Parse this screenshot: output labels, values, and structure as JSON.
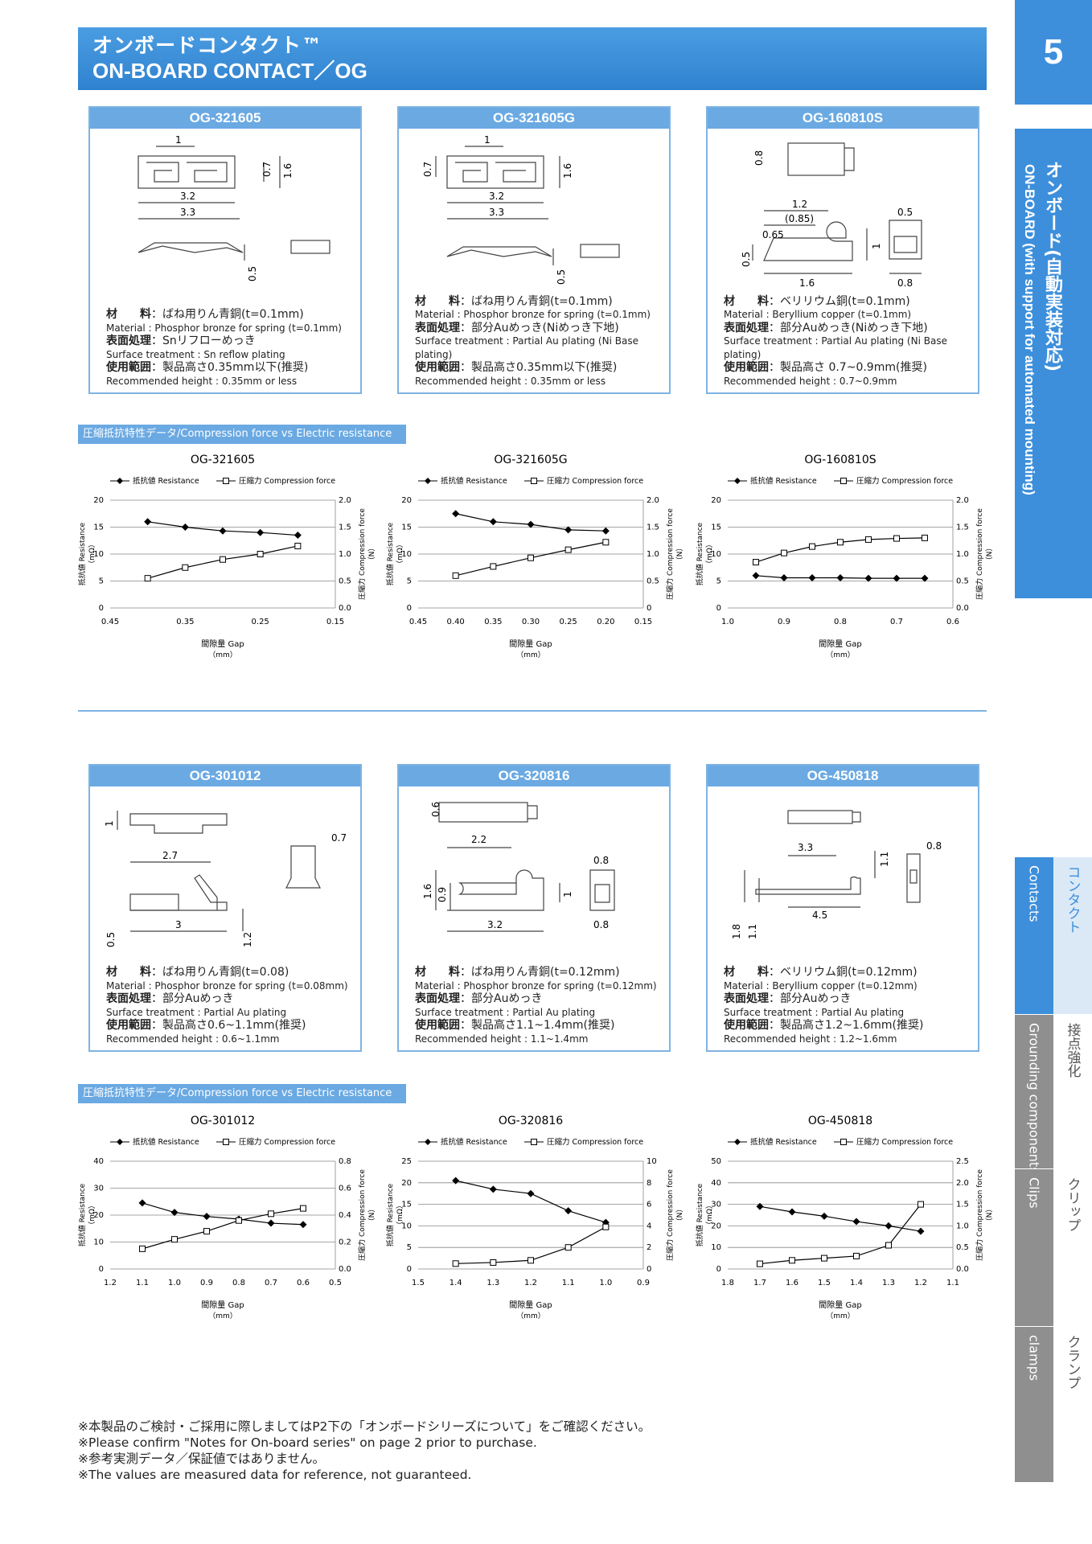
{
  "header": {
    "title_jp": "オンボードコンタクト™",
    "title_en": "ON-BOARD CONTACT／OG"
  },
  "side": {
    "page_num": "5",
    "section_en": "ON-BOARD (with support for automated mounting)",
    "section_jp": "オンボード(自動実装対応)",
    "tabs": [
      {
        "en": "Contacts",
        "jp": "コンタクト"
      },
      {
        "en": "Grounding components",
        "jp": "接点強化"
      },
      {
        "en": "Clips",
        "jp": "クリップ"
      },
      {
        "en": "clamps",
        "jp": "クランプ"
      }
    ]
  },
  "products": [
    {
      "name": "OG-321605",
      "dims": {
        "a": "1",
        "b": "0.7",
        "c": "1.6",
        "d": "3.2",
        "e": "3.3",
        "f": "0.5"
      },
      "material_label": "材　　料",
      "material_jp": "ばね用りん青銅(t=0.1mm)",
      "material_en": "Material : Phosphor bronze for spring (t=0.1mm)",
      "surface_label": "表面処理",
      "surface_jp": "Snリフローめっき",
      "surface_en": "Surface treatment : Sn reflow plating",
      "range_label": "使用範囲",
      "range_jp": "製品高さ0.35mm以下(推奨)",
      "range_en": "Recommended height : 0.35mm or less"
    },
    {
      "name": "OG-321605G",
      "dims": {
        "a": "1",
        "b": "0.7",
        "c": "1.6",
        "d": "3.2",
        "e": "3.3",
        "f": "0.5"
      },
      "material_label": "材　　料",
      "material_jp": "ばね用りん青銅(t=0.1mm)",
      "material_en": "Material : Phosphor bronze for spring (t=0.1mm)",
      "surface_label": "表面処理",
      "surface_jp": "部分Auめっき(Niめっき下地)",
      "surface_en": "Surface treatment : Partial Au plating (Ni Base plating)",
      "range_label": "使用範囲",
      "range_jp": "製品高さ0.35mm以下(推奨)",
      "range_en": "Recommended height : 0.35mm or less"
    },
    {
      "name": "OG-160810S",
      "dims": {
        "a": "0.8",
        "b": "1.2",
        "c": "(0.85)",
        "d": "0.65",
        "e": "0.5",
        "f": "1",
        "g": "1.6",
        "h": "0.5",
        "i": "0.8"
      },
      "material_label": "材　　料",
      "material_jp": "ベリリウム銅(t=0.1mm)",
      "material_en": "Material : Beryllium copper (t=0.1mm)",
      "surface_label": "表面処理",
      "surface_jp": "部分Auめっき(Niめっき下地)",
      "surface_en": "Surface treatment : Partial Au plating (Ni Base plating)",
      "range_label": "使用範囲",
      "range_jp": "製品高さ 0.7~0.9mm(推奨)",
      "range_en": "Recommended height : 0.7~0.9mm"
    },
    {
      "name": "OG-301012",
      "dims": {
        "a": "1",
        "b": "0.7",
        "c": "2.7",
        "d": "3",
        "e": "0.5",
        "f": "1.2"
      },
      "material_label": "材　　料",
      "material_jp": "ばね用りん青銅(t=0.08)",
      "material_en": "Material : Phosphor bronze for spring (t=0.08mm)",
      "surface_label": "表面処理",
      "surface_jp": "部分Auめっき",
      "surface_en": "Surface treatment : Partial Au plating",
      "range_label": "使用範囲",
      "range_jp": "製品高さ0.6~1.1mm(推奨)",
      "range_en": "Recommended height : 0.6~1.1mm"
    },
    {
      "name": "OG-320816",
      "dims": {
        "a": "0.6",
        "b": "2.2",
        "c": "0.8",
        "d": "1.6",
        "e": "0.9",
        "f": "1",
        "g": "3.2",
        "h": "0.8"
      },
      "material_label": "材　　料",
      "material_jp": "ばね用りん青銅(t=0.12mm)",
      "material_en": "Material : Phosphor bronze for spring (t=0.12mm)",
      "surface_label": "表面処理",
      "surface_jp": "部分Auめっき",
      "surface_en": "Surface treatment : Partial Au plating",
      "range_label": "使用範囲",
      "range_jp": "製品高さ1.1~1.4mm(推奨)",
      "range_en": "Recommended height : 1.1~1.4mm"
    },
    {
      "name": "OG-450818",
      "dims": {
        "a": "3.3",
        "b": "1.1",
        "c": "0.8",
        "d": "4.5",
        "e": "1.8",
        "f": "1.1"
      },
      "material_label": "材　　料",
      "material_jp": "ベリリウム銅(t=0.12mm)",
      "material_en": "Material : Beryllium copper (t=0.12mm)",
      "surface_label": "表面処理",
      "surface_jp": "部分Auめっき",
      "surface_en": "Surface treatment : Partial Au plating",
      "range_label": "使用範囲",
      "range_jp": "製品高さ1.2~1.6mm(推奨)",
      "range_en": "Recommended height : 1.2~1.6mm"
    }
  ],
  "section_label": "圧縮抵抗特性データ/Compression force vs Electric resistance",
  "chart_text": {
    "legend_resistance": "抵抗値 Resistance",
    "legend_force": "圧縮力 Compression force",
    "ylabel_left": "抵抗値 Resistance",
    "ylabel_left_unit": "（mΩ）",
    "ylabel_right": "圧縮力 Compression force",
    "ylabel_right_unit": "（N）",
    "xlabel": "間隙量 Gap",
    "xlabel_unit": "（mm）"
  },
  "chart_data": [
    {
      "type": "line",
      "title": "OG-321605",
      "x_ticks": [
        "0.45",
        "0.35",
        "0.25",
        "0.15"
      ],
      "x_range": [
        0.45,
        0.15
      ],
      "y_left_ticks": [
        "0",
        "5",
        "10",
        "15",
        "20"
      ],
      "y_left_range": [
        0,
        20
      ],
      "y_right_ticks": [
        "0.0",
        "0.5",
        "1.0",
        "1.5",
        "2.0"
      ],
      "y_right_range": [
        0,
        2
      ],
      "series": [
        {
          "name": "抵抗値 Resistance",
          "axis": "left",
          "marker": "diamond",
          "x": [
            0.4,
            0.35,
            0.3,
            0.25,
            0.2
          ],
          "y": [
            16,
            15,
            14.3,
            14,
            13.5
          ]
        },
        {
          "name": "圧縮力 Compression force",
          "axis": "right",
          "marker": "square",
          "x": [
            0.4,
            0.35,
            0.3,
            0.25,
            0.2
          ],
          "y": [
            0.55,
            0.75,
            0.9,
            1.0,
            1.15
          ]
        }
      ]
    },
    {
      "type": "line",
      "title": "OG-321605G",
      "x_ticks": [
        "0.45",
        "0.40",
        "0.35",
        "0.30",
        "0.25",
        "0.20",
        "0.15"
      ],
      "x_range": [
        0.45,
        0.15
      ],
      "y_left_ticks": [
        "0",
        "5",
        "10",
        "15",
        "20"
      ],
      "y_left_range": [
        0,
        20
      ],
      "y_right_ticks": [
        "0",
        "0.5",
        "1.0",
        "1.5",
        "2.0"
      ],
      "y_right_range": [
        0,
        2
      ],
      "series": [
        {
          "name": "抵抗値 Resistance",
          "axis": "left",
          "marker": "diamond",
          "x": [
            0.4,
            0.35,
            0.3,
            0.25,
            0.2
          ],
          "y": [
            17.5,
            16,
            15.5,
            14.5,
            14.3
          ]
        },
        {
          "name": "圧縮力 Compression force",
          "axis": "right",
          "marker": "square",
          "x": [
            0.4,
            0.35,
            0.3,
            0.25,
            0.2
          ],
          "y": [
            0.6,
            0.77,
            0.93,
            1.08,
            1.22
          ]
        }
      ]
    },
    {
      "type": "line",
      "title": "OG-160810S",
      "x_ticks": [
        "1.0",
        "0.9",
        "0.8",
        "0.7",
        "0.6"
      ],
      "x_range": [
        1.0,
        0.6
      ],
      "y_left_ticks": [
        "0",
        "5",
        "10",
        "15",
        "20"
      ],
      "y_left_range": [
        0,
        20
      ],
      "y_right_ticks": [
        "0.0",
        "0.5",
        "1.0",
        "1.5",
        "2.0"
      ],
      "y_right_range": [
        0,
        2
      ],
      "series": [
        {
          "name": "抵抗値 Resistance",
          "axis": "left",
          "marker": "diamond",
          "x": [
            0.95,
            0.9,
            0.85,
            0.8,
            0.75,
            0.7,
            0.65
          ],
          "y": [
            6,
            5.6,
            5.6,
            5.6,
            5.5,
            5.5,
            5.5
          ]
        },
        {
          "name": "圧縮力 Compression force",
          "axis": "right",
          "marker": "square",
          "x": [
            0.95,
            0.9,
            0.85,
            0.8,
            0.75,
            0.7,
            0.65
          ],
          "y": [
            0.85,
            1.02,
            1.14,
            1.22,
            1.27,
            1.29,
            1.3
          ]
        }
      ]
    },
    {
      "type": "line",
      "title": "OG-301012",
      "x_ticks": [
        "1.2",
        "1.1",
        "1.0",
        "0.9",
        "0.8",
        "0.7",
        "0.6",
        "0.5"
      ],
      "x_range": [
        1.2,
        0.5
      ],
      "y_left_ticks": [
        "0",
        "10",
        "20",
        "30",
        "40"
      ],
      "y_left_range": [
        0,
        40
      ],
      "y_right_ticks": [
        "0.0",
        "0.2",
        "0.4",
        "0.6",
        "0.8"
      ],
      "y_right_range": [
        0,
        0.8
      ],
      "series": [
        {
          "name": "抵抗値 Resistance",
          "axis": "left",
          "marker": "diamond",
          "x": [
            1.1,
            1.0,
            0.9,
            0.8,
            0.7,
            0.6
          ],
          "y": [
            24.5,
            21,
            19.5,
            18.5,
            17,
            16.5
          ]
        },
        {
          "name": "圧縮力 Compression force",
          "axis": "right",
          "marker": "square",
          "x": [
            1.1,
            1.0,
            0.9,
            0.8,
            0.7,
            0.6
          ],
          "y": [
            0.15,
            0.22,
            0.28,
            0.36,
            0.41,
            0.45
          ]
        }
      ]
    },
    {
      "type": "line",
      "title": "OG-320816",
      "x_ticks": [
        "1.5",
        "1.4",
        "1.3",
        "1.2",
        "1.1",
        "1.0",
        "0.9"
      ],
      "x_range": [
        1.5,
        0.9
      ],
      "y_left_ticks": [
        "0",
        "5",
        "10",
        "15",
        "20",
        "25"
      ],
      "y_left_range": [
        0,
        25
      ],
      "y_right_ticks": [
        "0",
        "2",
        "4",
        "6",
        "8",
        "10"
      ],
      "y_right_range": [
        0,
        10
      ],
      "series": [
        {
          "name": "抵抗値 Resistance",
          "axis": "left",
          "marker": "diamond",
          "x": [
            1.4,
            1.3,
            1.2,
            1.1,
            1.0
          ],
          "y": [
            20.5,
            18.5,
            17.5,
            13.5,
            10.8
          ]
        },
        {
          "name": "圧縮力 Compression force",
          "axis": "right",
          "marker": "square",
          "x": [
            1.4,
            1.3,
            1.2,
            1.1,
            1.0
          ],
          "y": [
            0.5,
            0.6,
            0.8,
            2,
            3.9
          ]
        }
      ]
    },
    {
      "type": "line",
      "title": "OG-450818",
      "x_ticks": [
        "1.8",
        "1.7",
        "1.6",
        "1.5",
        "1.4",
        "1.3",
        "1.2",
        "1.1"
      ],
      "x_range": [
        1.8,
        1.1
      ],
      "y_left_ticks": [
        "0",
        "10",
        "20",
        "30",
        "40",
        "50"
      ],
      "y_left_range": [
        0,
        50
      ],
      "y_right_ticks": [
        "0.0",
        "0.5",
        "1.0",
        "1.5",
        "2.0",
        "2.5"
      ],
      "y_right_range": [
        0,
        2.5
      ],
      "series": [
        {
          "name": "抵抗値 Resistance",
          "axis": "left",
          "marker": "diamond",
          "x": [
            1.7,
            1.6,
            1.5,
            1.4,
            1.3,
            1.2
          ],
          "y": [
            29,
            26.5,
            24.5,
            22,
            20,
            17.5
          ]
        },
        {
          "name": "圧縮力 Compression force",
          "axis": "right",
          "marker": "square",
          "x": [
            1.7,
            1.6,
            1.5,
            1.4,
            1.3,
            1.2
          ],
          "y": [
            0.12,
            0.2,
            0.25,
            0.3,
            0.55,
            1.5
          ]
        }
      ]
    }
  ],
  "notes": [
    "※本製品のご検討・ご採用に際しましてはP2下の「オンボードシリーズについて」をご確認ください。",
    "※Please confirm \"Notes for On-board series\" on page 2 prior to purchase.",
    "※参考実測データ／保証値ではありません。",
    "※The values are measured data for reference,  not guaranteed."
  ]
}
